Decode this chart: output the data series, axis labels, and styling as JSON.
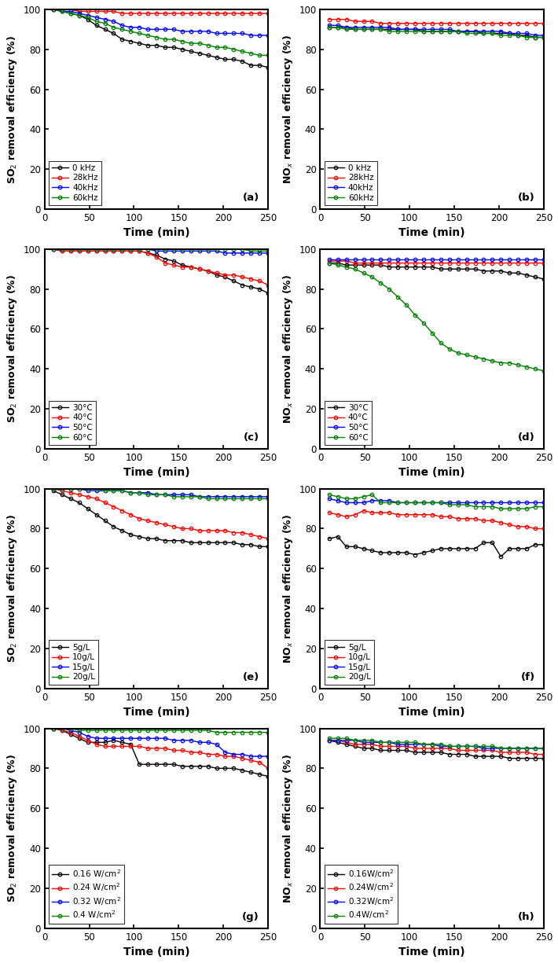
{
  "panels": [
    {
      "label": "(a)",
      "ylabel": "SO$_2$ removal efficiency (%)",
      "xlabel": "Time (min)",
      "legend_labels": [
        "0 kHz",
        "28kHz",
        "40kHz",
        "60kHz"
      ],
      "colors": [
        "#000000",
        "#ff0000",
        "#0000ff",
        "#008000"
      ],
      "ylim": [
        0,
        100
      ],
      "xlim": [
        0,
        250
      ],
      "legend_loc": "lower left",
      "series": [
        [
          100,
          99,
          98,
          97,
          95,
          92,
          90,
          88,
          85,
          84,
          83,
          82,
          82,
          81,
          81,
          80,
          79,
          78,
          77,
          76,
          75,
          75,
          74,
          72,
          72,
          71
        ],
        [
          100,
          100,
          100,
          99,
          99,
          99,
          99,
          99,
          98,
          98,
          98,
          98,
          98,
          98,
          98,
          98,
          98,
          98,
          98,
          98,
          98,
          98,
          98,
          98,
          98,
          98
        ],
        [
          100,
          99,
          99,
          98,
          97,
          96,
          95,
          94,
          92,
          91,
          91,
          90,
          90,
          90,
          90,
          89,
          89,
          89,
          89,
          88,
          88,
          88,
          88,
          87,
          87,
          87
        ],
        [
          100,
          99,
          98,
          97,
          96,
          94,
          93,
          91,
          90,
          89,
          88,
          87,
          86,
          85,
          85,
          84,
          83,
          83,
          82,
          81,
          81,
          80,
          79,
          78,
          77,
          77
        ]
      ]
    },
    {
      "label": "(b)",
      "ylabel": "NO$_x$ removal efficiency (%)",
      "xlabel": "Time (min)",
      "legend_labels": [
        "0 kHz",
        "28kHz",
        "40kHz",
        "60kHz"
      ],
      "colors": [
        "#000000",
        "#ff0000",
        "#0000ff",
        "#008000"
      ],
      "ylim": [
        0,
        100
      ],
      "xlim": [
        0,
        250
      ],
      "legend_loc": "lower left",
      "series": [
        [
          91,
          91,
          91,
          90,
          90,
          90,
          90,
          90,
          90,
          90,
          90,
          89,
          89,
          89,
          89,
          89,
          89,
          89,
          88,
          88,
          88,
          88,
          87,
          87,
          86,
          86
        ],
        [
          95,
          95,
          95,
          94,
          94,
          94,
          93,
          93,
          93,
          93,
          93,
          93,
          93,
          93,
          93,
          93,
          93,
          93,
          93,
          93,
          93,
          93,
          93,
          93,
          93,
          93
        ],
        [
          92,
          92,
          91,
          91,
          91,
          91,
          91,
          91,
          90,
          90,
          90,
          90,
          90,
          90,
          90,
          89,
          89,
          89,
          89,
          89,
          89,
          88,
          88,
          88,
          87,
          87
        ],
        [
          91,
          91,
          90,
          90,
          90,
          90,
          90,
          89,
          89,
          89,
          89,
          89,
          89,
          89,
          89,
          89,
          88,
          88,
          88,
          88,
          87,
          87,
          87,
          86,
          86,
          86
        ]
      ]
    },
    {
      "label": "(c)",
      "ylabel": "SO$_2$ removal efficiency (%)",
      "xlabel": "Time (min)",
      "legend_labels": [
        "30°C",
        "40°C",
        "50°C",
        "60°C"
      ],
      "colors": [
        "#000000",
        "#ff0000",
        "#0000ff",
        "#008000"
      ],
      "ylim": [
        0,
        100
      ],
      "xlim": [
        0,
        250
      ],
      "legend_loc": "lower left",
      "series": [
        [
          100,
          99,
          99,
          99,
          99,
          99,
          99,
          99,
          99,
          99,
          99,
          98,
          97,
          95,
          94,
          92,
          91,
          90,
          89,
          87,
          86,
          84,
          82,
          81,
          80,
          78
        ],
        [
          100,
          99,
          99,
          99,
          99,
          99,
          99,
          99,
          99,
          99,
          99,
          98,
          96,
          93,
          92,
          91,
          91,
          90,
          89,
          88,
          87,
          87,
          86,
          85,
          84,
          82
        ],
        [
          100,
          100,
          100,
          100,
          100,
          100,
          100,
          100,
          100,
          100,
          100,
          100,
          99,
          99,
          99,
          99,
          99,
          99,
          99,
          99,
          98,
          98,
          98,
          98,
          98,
          98
        ],
        [
          100,
          100,
          100,
          100,
          100,
          100,
          100,
          100,
          100,
          100,
          100,
          100,
          100,
          100,
          100,
          100,
          100,
          100,
          100,
          100,
          100,
          100,
          100,
          99,
          99,
          99
        ]
      ]
    },
    {
      "label": "(d)",
      "ylabel": "NO$_x$ removal efficiency (%)",
      "xlabel": "Time (min)",
      "legend_labels": [
        "30°C",
        "40°C",
        "50°C",
        "60°C"
      ],
      "colors": [
        "#000000",
        "#ff0000",
        "#0000ff",
        "#008000"
      ],
      "ylim": [
        0,
        100
      ],
      "xlim": [
        0,
        250
      ],
      "legend_loc": "lower left",
      "series": [
        [
          93,
          93,
          92,
          92,
          92,
          92,
          92,
          91,
          91,
          91,
          91,
          91,
          91,
          90,
          90,
          90,
          90,
          90,
          89,
          89,
          89,
          88,
          88,
          87,
          86,
          85
        ],
        [
          94,
          94,
          94,
          93,
          93,
          93,
          93,
          93,
          93,
          93,
          93,
          93,
          93,
          93,
          93,
          93,
          93,
          93,
          93,
          93,
          93,
          93,
          93,
          93,
          93,
          93
        ],
        [
          95,
          95,
          95,
          95,
          95,
          95,
          95,
          95,
          95,
          95,
          95,
          95,
          95,
          95,
          95,
          95,
          95,
          95,
          95,
          95,
          95,
          95,
          95,
          95,
          95,
          95
        ],
        [
          93,
          92,
          91,
          90,
          88,
          86,
          83,
          80,
          76,
          72,
          67,
          63,
          58,
          53,
          50,
          48,
          47,
          46,
          45,
          44,
          43,
          43,
          42,
          41,
          40,
          39
        ]
      ]
    },
    {
      "label": "(e)",
      "ylabel": "SO$_2$ removal efficiency (%)",
      "xlabel": "Time (min)",
      "legend_labels": [
        "5g/L",
        "10g/L",
        "15g/L",
        "20g/L"
      ],
      "colors": [
        "#000000",
        "#ff0000",
        "#0000ff",
        "#008000"
      ],
      "ylim": [
        0,
        100
      ],
      "xlim": [
        0,
        250
      ],
      "legend_loc": "lower left",
      "series": [
        [
          99,
          97,
          95,
          93,
          90,
          87,
          84,
          81,
          79,
          77,
          76,
          75,
          75,
          74,
          74,
          74,
          73,
          73,
          73,
          73,
          73,
          73,
          72,
          72,
          71,
          71
        ],
        [
          100,
          99,
          98,
          97,
          96,
          95,
          93,
          91,
          89,
          87,
          85,
          84,
          83,
          82,
          81,
          80,
          80,
          79,
          79,
          79,
          79,
          78,
          78,
          77,
          76,
          75
        ],
        [
          100,
          100,
          100,
          100,
          99,
          99,
          99,
          99,
          99,
          98,
          98,
          98,
          97,
          97,
          97,
          97,
          97,
          96,
          96,
          96,
          96,
          96,
          96,
          96,
          96,
          96
        ],
        [
          100,
          100,
          100,
          100,
          100,
          100,
          99,
          99,
          99,
          98,
          98,
          97,
          97,
          97,
          96,
          96,
          96,
          96,
          95,
          95,
          95,
          95,
          95,
          95,
          95,
          95
        ]
      ]
    },
    {
      "label": "(f)",
      "ylabel": "NO$_x$ removal efficiency (%)",
      "xlabel": "Time (min)",
      "legend_labels": [
        "5g/L",
        "10g/L",
        "15g/L",
        "20g/L"
      ],
      "colors": [
        "#000000",
        "#ff0000",
        "#0000ff",
        "#008000"
      ],
      "ylim": [
        0,
        100
      ],
      "xlim": [
        0,
        250
      ],
      "legend_loc": "lower left",
      "series": [
        [
          75,
          76,
          71,
          71,
          70,
          69,
          68,
          68,
          68,
          68,
          67,
          68,
          69,
          70,
          70,
          70,
          70,
          70,
          73,
          73,
          66,
          70,
          70,
          70,
          72,
          72
        ],
        [
          88,
          87,
          86,
          87,
          89,
          88,
          88,
          88,
          87,
          87,
          87,
          87,
          87,
          86,
          86,
          85,
          85,
          85,
          84,
          84,
          83,
          82,
          81,
          81,
          80,
          80
        ],
        [
          95,
          94,
          93,
          93,
          93,
          94,
          94,
          94,
          93,
          93,
          93,
          93,
          93,
          93,
          93,
          93,
          93,
          93,
          93,
          93,
          93,
          93,
          93,
          93,
          93,
          93
        ],
        [
          97,
          96,
          95,
          95,
          96,
          97,
          93,
          93,
          93,
          93,
          93,
          93,
          93,
          93,
          92,
          92,
          92,
          91,
          91,
          91,
          90,
          90,
          90,
          90,
          91,
          91
        ]
      ]
    },
    {
      "label": "(g)",
      "ylabel": "SO$_2$ removal efficiency (%)",
      "xlabel": "Time (min)",
      "legend_labels": [
        "0.16 W/cm$^2$",
        "0.24 W/cm$^2$",
        "0.32 W/cm$^2$",
        "0.4 W/cm$^2$"
      ],
      "colors": [
        "#000000",
        "#ff0000",
        "#0000ff",
        "#008000"
      ],
      "ylim": [
        0,
        100
      ],
      "xlim": [
        0,
        250
      ],
      "legend_loc": "lower left",
      "series": [
        [
          100,
          99,
          97,
          95,
          93,
          93,
          93,
          94,
          93,
          92,
          82,
          82,
          82,
          82,
          82,
          81,
          81,
          81,
          81,
          80,
          80,
          80,
          79,
          78,
          77,
          76
        ],
        [
          100,
          99,
          98,
          96,
          94,
          92,
          91,
          91,
          91,
          91,
          91,
          90,
          90,
          90,
          89,
          89,
          88,
          88,
          87,
          87,
          86,
          86,
          85,
          84,
          83,
          80
        ],
        [
          100,
          100,
          99,
          98,
          96,
          95,
          95,
          95,
          95,
          95,
          95,
          95,
          95,
          95,
          94,
          94,
          94,
          93,
          93,
          92,
          88,
          87,
          87,
          86,
          86,
          86
        ],
        [
          100,
          100,
          100,
          99,
          99,
          99,
          99,
          99,
          99,
          99,
          99,
          99,
          99,
          99,
          99,
          99,
          99,
          99,
          99,
          98,
          98,
          98,
          98,
          98,
          98,
          98
        ]
      ]
    },
    {
      "label": "(h)",
      "ylabel": "NO$_x$ removal efficiency (%)",
      "xlabel": "Time (min)",
      "legend_labels": [
        "0.16W/cm$^2$",
        "0.24W/cm$^2$",
        "0.32W/cm$^2$",
        "0.4W/cm$^2$"
      ],
      "colors": [
        "#000000",
        "#ff0000",
        "#0000ff",
        "#008000"
      ],
      "ylim": [
        0,
        100
      ],
      "xlim": [
        0,
        250
      ],
      "legend_loc": "lower left",
      "series": [
        [
          94,
          93,
          92,
          91,
          90,
          90,
          89,
          89,
          89,
          89,
          88,
          88,
          88,
          88,
          87,
          87,
          87,
          86,
          86,
          86,
          86,
          85,
          85,
          85,
          85,
          85
        ],
        [
          94,
          94,
          93,
          92,
          92,
          92,
          91,
          91,
          91,
          91,
          90,
          90,
          90,
          90,
          90,
          89,
          89,
          89,
          89,
          89,
          88,
          88,
          88,
          88,
          87,
          87
        ],
        [
          94,
          94,
          94,
          94,
          93,
          93,
          93,
          93,
          92,
          92,
          92,
          92,
          92,
          91,
          91,
          91,
          91,
          91,
          90,
          90,
          90,
          90,
          90,
          90,
          90,
          90
        ],
        [
          95,
          95,
          95,
          94,
          94,
          94,
          93,
          93,
          93,
          93,
          93,
          92,
          92,
          92,
          91,
          91,
          91,
          91,
          91,
          91,
          90,
          90,
          90,
          90,
          90,
          90
        ]
      ]
    }
  ]
}
